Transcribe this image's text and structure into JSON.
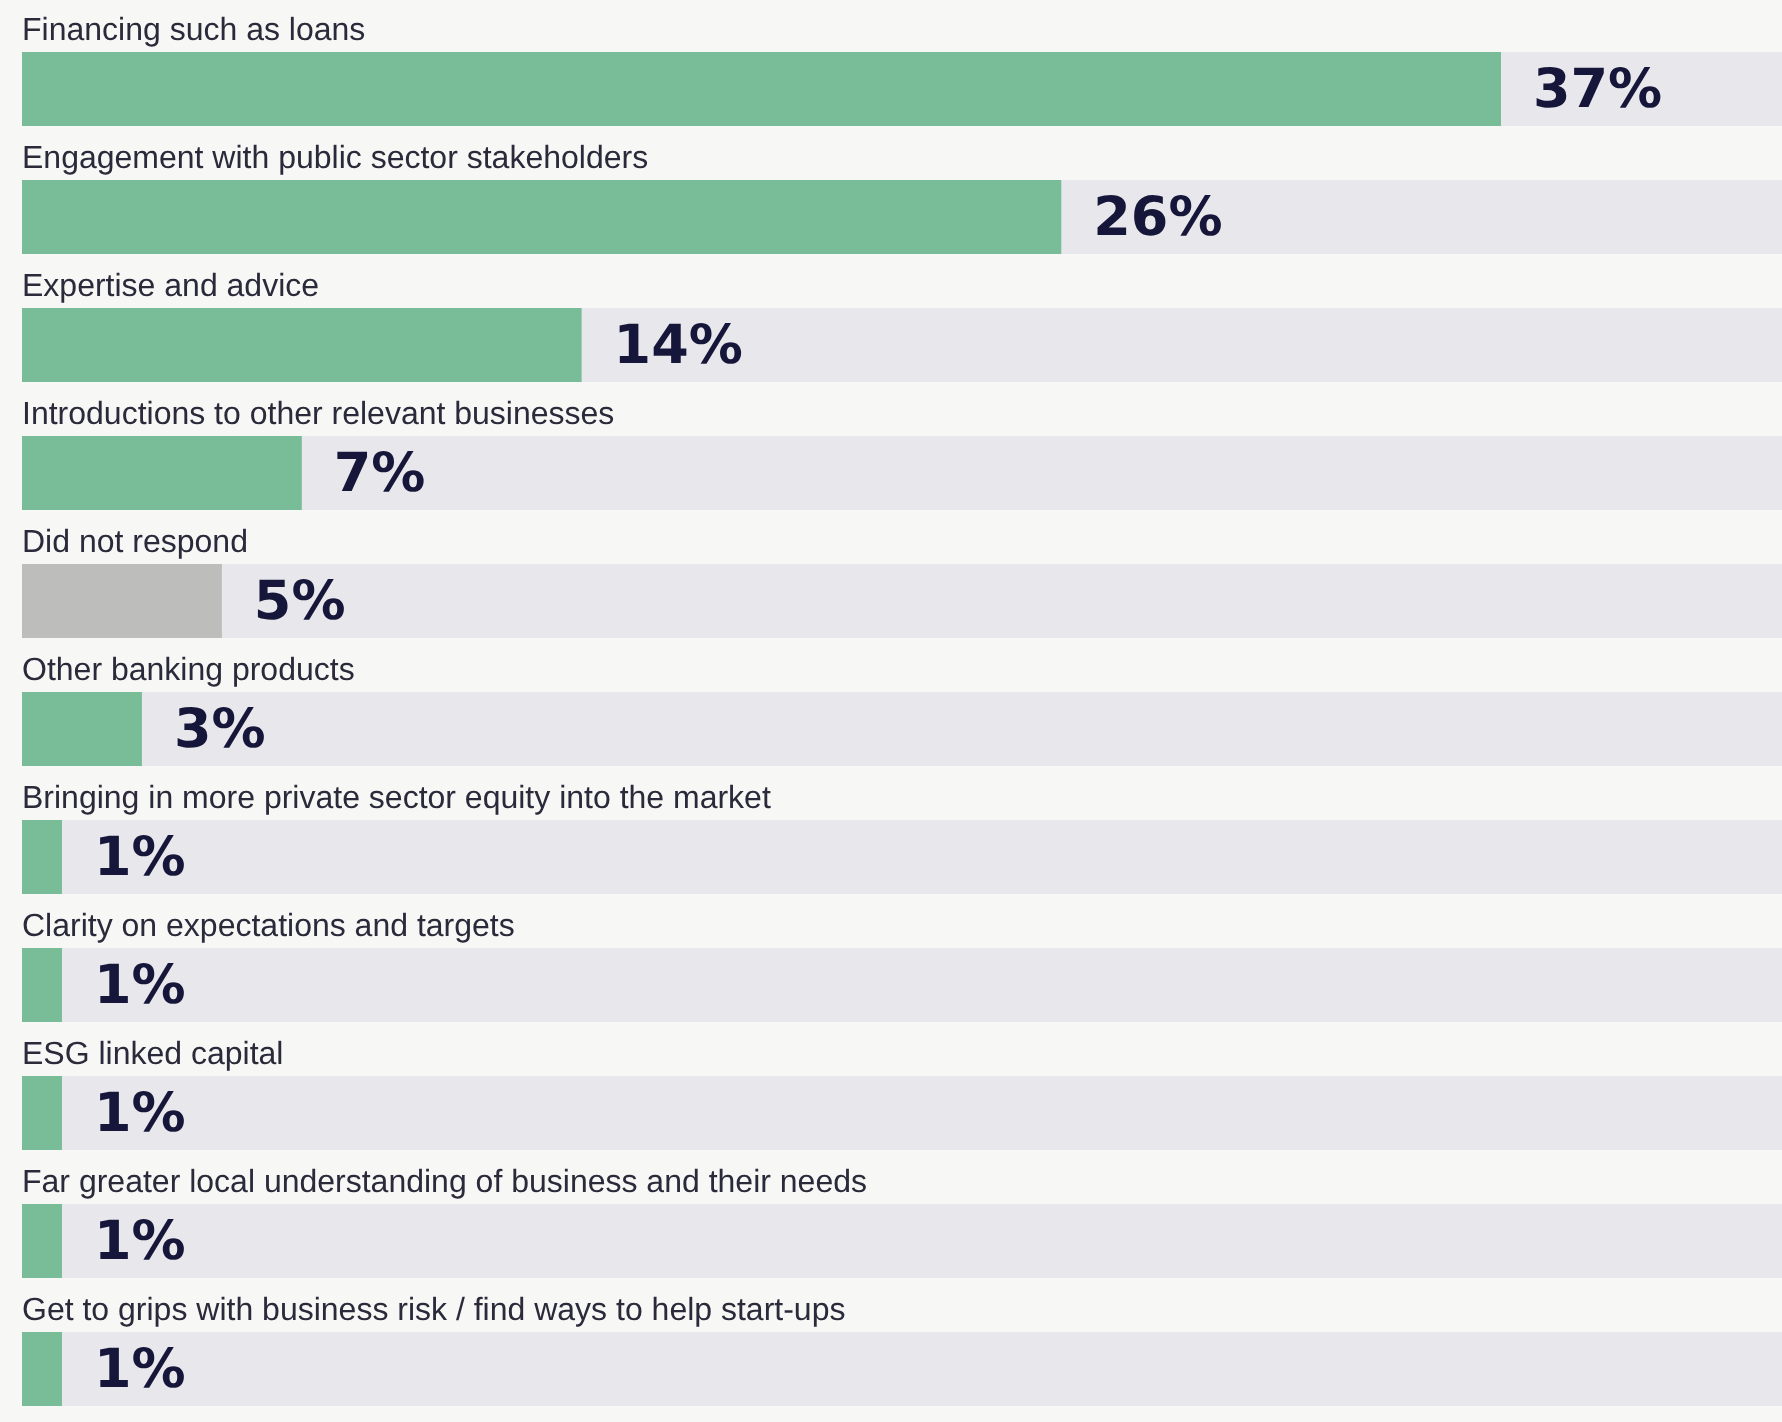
{
  "chart_data": {
    "type": "bar",
    "orientation": "horizontal",
    "categories": [
      "Financing such as loans",
      "Engagement with public sector stakeholders",
      "Expertise and advice",
      "Introductions to other relevant businesses",
      "Did not respond",
      "Other banking products",
      "Bringing in more private sector equity into the market",
      "Clarity on expectations and targets",
      "ESG linked capital",
      "Far greater local understanding of business and their needs",
      "Get to grips with business risk / find ways to help start-ups"
    ],
    "values": [
      37,
      26,
      14,
      7,
      5,
      3,
      1,
      1,
      1,
      1,
      1
    ],
    "value_labels": [
      "37%",
      "26%",
      "14%",
      "7%",
      "5%",
      "3%",
      "1%",
      "1%",
      "1%",
      "1%",
      "1%"
    ],
    "colors": [
      "#79bd98",
      "#79bd98",
      "#79bd98",
      "#79bd98",
      "#bdbdbb",
      "#79bd98",
      "#79bd98",
      "#79bd98",
      "#79bd98",
      "#79bd98",
      "#79bd98"
    ]
  }
}
